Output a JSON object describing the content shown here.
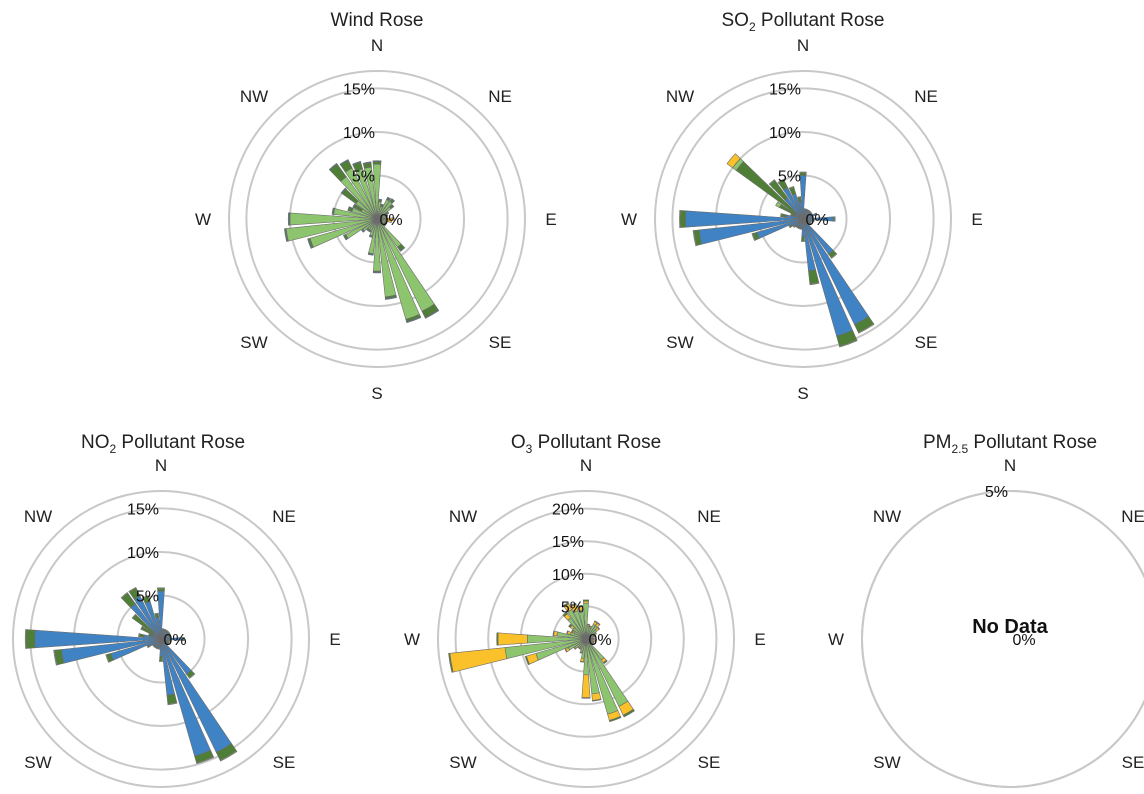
{
  "colors": {
    "grid": "#c8c8c8",
    "light_green": "#8dc56e",
    "dark_green": "#4f7f36",
    "blue": "#3f83c4",
    "yellow": "#fbc12a"
  },
  "directions": [
    "N",
    "NE",
    "E",
    "SE",
    "S",
    "SW",
    "W",
    "NW"
  ],
  "chart_data": [
    {
      "type": "polar-stacked-bar",
      "title_main": "Wind Rose",
      "title_sub": "",
      "title_rest": "",
      "rmax": 17,
      "rings": [
        {
          "value": 0,
          "label": "0%"
        },
        {
          "value": 5,
          "label": "5%"
        },
        {
          "value": 10,
          "label": "10%"
        },
        {
          "value": 15,
          "label": "15%"
        }
      ],
      "sectors": 36,
      "bar_width_deg": 8,
      "series": [
        {
          "name": "",
          "color": "light_green",
          "values": [
            6.3,
            2.0,
            1.5,
            2.5,
            2.5,
            2.0,
            1.2,
            1.0,
            1.0,
            1.0,
            1.0,
            1.0,
            1.0,
            1.0,
            4.0,
            11.8,
            12.0,
            9.0,
            6.0,
            4.0,
            2.0,
            1.5,
            1.5,
            2.0,
            4.0,
            8.0,
            10.5,
            10.0,
            5.0,
            3.0,
            2.0,
            3.0,
            6.0,
            6.5,
            6.0,
            6.0
          ]
        },
        {
          "name": "",
          "color": "dark_green",
          "values": [
            0.3,
            0.2,
            0.2,
            0.2,
            0.3,
            0.3,
            0.2,
            0.2,
            0.1,
            0.1,
            0.1,
            0.1,
            0.1,
            0.1,
            0.5,
            0.8,
            0.3,
            0.2,
            0.1,
            0.1,
            0.1,
            0.1,
            0.1,
            0.1,
            0.2,
            0.2,
            0.1,
            0.1,
            0.1,
            0.4,
            1.0,
            2.0,
            1.8,
            1.0,
            0.8,
            0.5
          ]
        },
        {
          "name": "",
          "color": "blue",
          "values": [
            0.1,
            0.1,
            0.1,
            0.1,
            0.1,
            0.1,
            0.1,
            0.1,
            0.1,
            0.1,
            0.1,
            0.1,
            0.1,
            0.1,
            0.1,
            0.1,
            0.1,
            0.1,
            0.1,
            0.1,
            0.1,
            0.1,
            0.1,
            0.1,
            0.1,
            0.1,
            0.1,
            0.1,
            0.1,
            0.1,
            0.1,
            0.1,
            0.1,
            0.1,
            0.1,
            0.1
          ]
        },
        {
          "name": "",
          "color": "yellow",
          "values": [
            0,
            0,
            0,
            0,
            0,
            0,
            0,
            0,
            0,
            0.8,
            0.5,
            0,
            0,
            0,
            0,
            0,
            0,
            0,
            0,
            0,
            0,
            0,
            0,
            0,
            0,
            0,
            0,
            0,
            0,
            0,
            0,
            0,
            0,
            0,
            0,
            0
          ]
        }
      ]
    },
    {
      "type": "polar-stacked-bar",
      "title_main": "SO",
      "title_sub": "2",
      "title_rest": " Pollutant Rose",
      "rmax": 17,
      "rings": [
        {
          "value": 0,
          "label": "0%"
        },
        {
          "value": 5,
          "label": "5%"
        },
        {
          "value": 10,
          "label": "10%"
        },
        {
          "value": 15,
          "label": "15%"
        }
      ],
      "sectors": 36,
      "bar_width_deg": 8,
      "series": [
        {
          "name": "",
          "color": "blue",
          "values": [
            5.0,
            1.0,
            1.0,
            1.0,
            1.0,
            1.0,
            1.0,
            1.5,
            1.0,
            3.5,
            1.0,
            0.8,
            0.8,
            0.8,
            5.0,
            13.5,
            14.0,
            6.0,
            2.0,
            1.0,
            1.0,
            1.0,
            1.0,
            1.2,
            1.5,
            5.5,
            12.0,
            13.5,
            2.0,
            1.0,
            1.0,
            1.0,
            3.0,
            4.0,
            3.0,
            2.0
          ]
        },
        {
          "name": "",
          "color": "dark_green",
          "values": [
            0.3,
            0.1,
            0.1,
            0.1,
            0.1,
            0.1,
            0.1,
            0.1,
            0.1,
            0.1,
            0.2,
            0.1,
            0.1,
            0.1,
            0.5,
            1.0,
            1.2,
            1.5,
            0.5,
            0.1,
            0.1,
            0.1,
            0.1,
            0.1,
            0.2,
            0.5,
            0.6,
            0.6,
            0.5,
            0.4,
            2.0,
            8.5,
            2.5,
            1.0,
            0.8,
            0.5
          ]
        },
        {
          "name": "",
          "color": "light_green",
          "values": [
            0.1,
            0.1,
            0.1,
            0.1,
            0.1,
            0.1,
            0.1,
            0.1,
            0.1,
            0.1,
            0.1,
            0.1,
            0.1,
            0.1,
            0.1,
            0.1,
            0.1,
            0.1,
            0.1,
            0.1,
            0.1,
            0.1,
            0.1,
            0.1,
            0.1,
            0.1,
            0.1,
            0.1,
            0.1,
            0.1,
            0.5,
            0.5,
            0.1,
            0.1,
            0.1,
            0.1
          ]
        },
        {
          "name": "",
          "color": "yellow",
          "values": [
            0,
            0,
            0,
            0,
            0,
            0,
            0,
            0,
            0,
            0,
            0,
            0,
            0,
            0,
            0,
            0,
            0,
            0,
            0,
            0,
            0,
            0,
            0,
            0,
            0,
            0,
            0,
            0,
            0,
            0,
            0,
            0.8,
            0,
            0,
            0,
            0
          ]
        }
      ]
    },
    {
      "type": "polar-stacked-bar",
      "title_main": "NO",
      "title_sub": "2",
      "title_rest": " Pollutant Rose",
      "rmax": 17,
      "rings": [
        {
          "value": 0,
          "label": "0%"
        },
        {
          "value": 5,
          "label": "5%"
        },
        {
          "value": 10,
          "label": "10%"
        },
        {
          "value": 15,
          "label": "15%"
        }
      ],
      "sectors": 36,
      "bar_width_deg": 8,
      "series": [
        {
          "name": "",
          "color": "blue",
          "values": [
            5.5,
            1.0,
            1.0,
            1.0,
            1.0,
            1.0,
            1.0,
            1.0,
            1.0,
            2.5,
            0.8,
            0.8,
            0.8,
            0.8,
            5.0,
            14.5,
            14.0,
            6.5,
            2.0,
            1.0,
            1.0,
            1.0,
            1.0,
            1.0,
            1.5,
            6.0,
            11.5,
            14.5,
            2.0,
            1.0,
            1.0,
            1.0,
            5.0,
            5.5,
            4.5,
            2.5
          ]
        },
        {
          "name": "",
          "color": "dark_green",
          "values": [
            0.3,
            0.1,
            0.1,
            0.1,
            0.1,
            0.1,
            0.1,
            0.1,
            0.1,
            0.1,
            0.2,
            0.1,
            0.1,
            0.1,
            0.5,
            1.0,
            0.8,
            1.0,
            0.5,
            0.1,
            0.1,
            0.1,
            0.1,
            0.1,
            0.2,
            0.5,
            0.8,
            1.0,
            0.5,
            0.4,
            1.5,
            3.0,
            1.5,
            1.0,
            0.6,
            0.4
          ]
        },
        {
          "name": "",
          "color": "light_green",
          "values": [
            0.1,
            0.1,
            0.1,
            0.1,
            0.1,
            0.1,
            0.1,
            0.1,
            0.1,
            0.1,
            0.1,
            0.1,
            0.1,
            0.1,
            0.1,
            0.1,
            0.1,
            0.1,
            0.1,
            0.1,
            0.1,
            0.1,
            0.1,
            0.1,
            0.1,
            0.1,
            0.1,
            0.1,
            0.1,
            0.1,
            0.1,
            0.1,
            0.1,
            0.1,
            0.1,
            0.1
          ]
        },
        {
          "name": "",
          "color": "yellow",
          "values": [
            0,
            0,
            0,
            0,
            0,
            0,
            0,
            0,
            0,
            0,
            0,
            0,
            0,
            0,
            0,
            0,
            0,
            0,
            0,
            0,
            0,
            0,
            0,
            0,
            0,
            0,
            0,
            0,
            0,
            0,
            0,
            0,
            0,
            0,
            0,
            0
          ]
        }
      ]
    },
    {
      "type": "polar-stacked-bar",
      "title_main": "O",
      "title_sub": "3",
      "title_rest": " Pollutant Rose",
      "rmax": 22.7,
      "rings": [
        {
          "value": 0,
          "label": "0%"
        },
        {
          "value": 5,
          "label": "5%"
        },
        {
          "value": 10,
          "label": "10%"
        },
        {
          "value": 15,
          "label": "15%"
        },
        {
          "value": 20,
          "label": "20%"
        }
      ],
      "sectors": 36,
      "bar_width_deg": 8,
      "series": [
        {
          "name": "",
          "color": "light_green",
          "values": [
            5.5,
            2.0,
            1.8,
            2.5,
            2.5,
            2.0,
            1.5,
            1.2,
            1.0,
            1.0,
            1.0,
            1.0,
            1.0,
            1.0,
            4.0,
            11.5,
            12.0,
            8.5,
            5.5,
            3.0,
            2.0,
            1.5,
            1.5,
            2.0,
            3.0,
            8.0,
            12.5,
            9.0,
            4.5,
            2.5,
            2.0,
            2.5,
            4.0,
            5.0,
            4.5,
            4.5
          ]
        },
        {
          "name": "",
          "color": "yellow",
          "values": [
            0.3,
            0.2,
            0.2,
            0.5,
            0.5,
            0.5,
            0.2,
            0.2,
            0.2,
            0.2,
            0.5,
            0.2,
            0.2,
            0.2,
            0.5,
            1.5,
            1.0,
            1.0,
            3.5,
            0.5,
            0.2,
            0.2,
            0.2,
            0.2,
            0.5,
            1.5,
            8.5,
            4.5,
            0.5,
            0.5,
            0.3,
            0.5,
            0.8,
            1.0,
            1.0,
            0.5
          ]
        },
        {
          "name": "",
          "color": "dark_green",
          "values": [
            0.2,
            0.1,
            0.1,
            0.1,
            0.1,
            0.1,
            0.1,
            0.1,
            0.1,
            0.1,
            0.1,
            0.1,
            0.1,
            0.1,
            0.2,
            0.3,
            0.2,
            0.1,
            0.1,
            0.1,
            0.1,
            0.1,
            0.1,
            0.1,
            0.1,
            0.2,
            0.2,
            0.2,
            0.1,
            0.1,
            0.2,
            0.3,
            0.3,
            0.2,
            0.2,
            0.2
          ]
        },
        {
          "name": "",
          "color": "blue",
          "values": [
            0,
            0,
            0,
            0,
            0,
            0,
            0,
            0,
            0,
            0,
            0,
            0,
            0,
            0,
            0,
            0,
            0,
            0,
            0,
            0,
            0,
            0,
            0,
            0,
            0,
            0,
            0,
            0,
            0,
            0,
            0,
            0,
            0,
            0,
            0,
            0
          ]
        }
      ]
    },
    {
      "type": "polar-stacked-bar",
      "title_main": "PM",
      "title_sub": "2.5",
      "title_rest": " Pollutant Rose",
      "rmax": 5,
      "rings": [
        {
          "value": 0,
          "label": "0%"
        },
        {
          "value": 5,
          "label": "5%"
        }
      ],
      "sectors": 36,
      "bar_width_deg": 8,
      "no_data_text": "No Data",
      "series": []
    }
  ]
}
